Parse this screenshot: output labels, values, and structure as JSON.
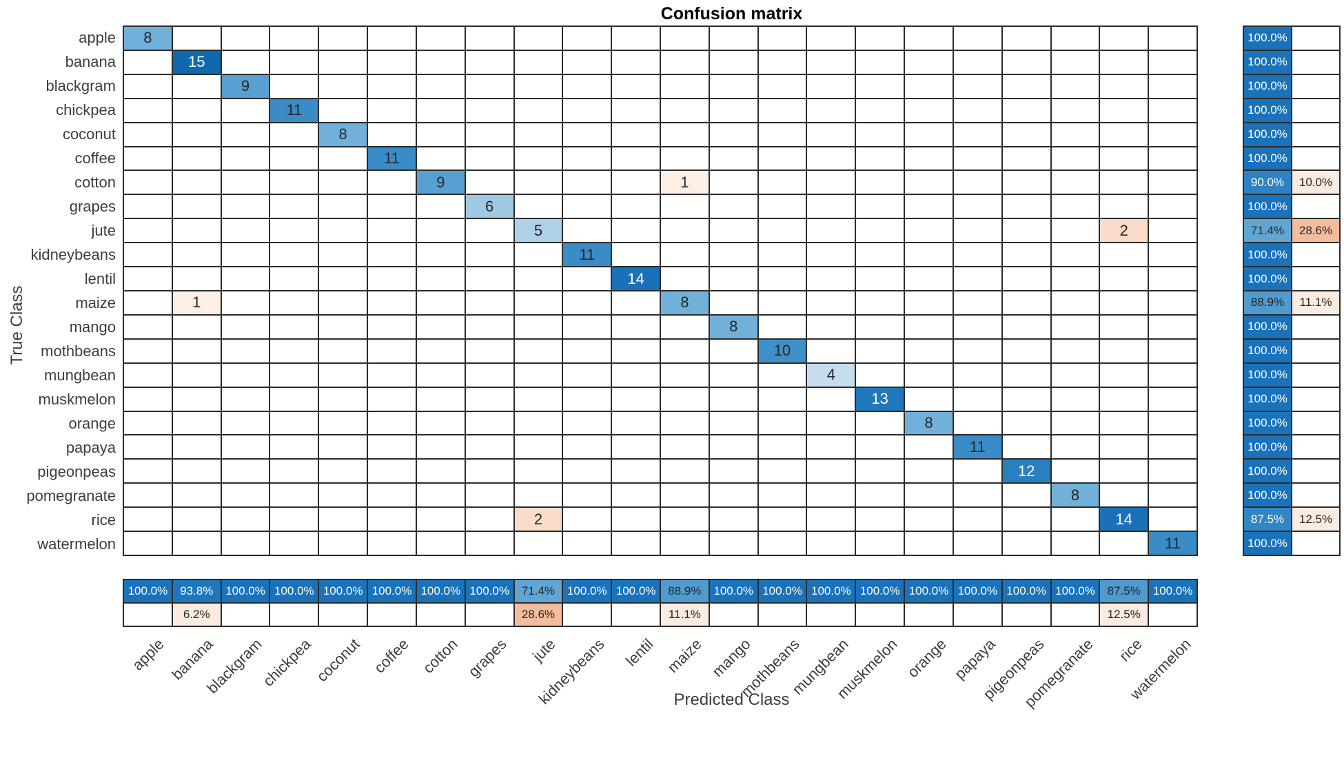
{
  "title": "Confusion matrix",
  "x_axis_label": "Predicted Class",
  "y_axis_label": "True Class",
  "chart_data": {
    "type": "heatmap",
    "title": "Confusion matrix",
    "xlabel": "Predicted Class",
    "ylabel": "True Class",
    "legend_position": "none",
    "grid": true,
    "classes": [
      "apple",
      "banana",
      "blackgram",
      "chickpea",
      "coconut",
      "coffee",
      "cotton",
      "grapes",
      "jute",
      "kidneybeans",
      "lentil",
      "maize",
      "mango",
      "mothbeans",
      "mungbean",
      "muskmelon",
      "orange",
      "papaya",
      "pigeonpeas",
      "pomegranate",
      "rice",
      "watermelon"
    ],
    "diagonal": [
      8,
      15,
      9,
      11,
      8,
      11,
      9,
      6,
      5,
      11,
      14,
      8,
      8,
      10,
      4,
      13,
      8,
      11,
      12,
      8,
      14,
      11
    ],
    "off_diagonal": [
      {
        "true_class": "cotton",
        "predicted_class": "maize",
        "value": 1
      },
      {
        "true_class": "jute",
        "predicted_class": "rice",
        "value": 2
      },
      {
        "true_class": "maize",
        "predicted_class": "banana",
        "value": 1
      },
      {
        "true_class": "rice",
        "predicted_class": "jute",
        "value": 2
      }
    ],
    "row_summary": [
      {
        "pct": "100.0%",
        "style": "blue100",
        "err": "",
        "err_style": ""
      },
      {
        "pct": "100.0%",
        "style": "blue100",
        "err": "",
        "err_style": ""
      },
      {
        "pct": "100.0%",
        "style": "blue100",
        "err": "",
        "err_style": ""
      },
      {
        "pct": "100.0%",
        "style": "blue100",
        "err": "",
        "err_style": ""
      },
      {
        "pct": "100.0%",
        "style": "blue100",
        "err": "",
        "err_style": ""
      },
      {
        "pct": "100.0%",
        "style": "blue100",
        "err": "",
        "err_style": ""
      },
      {
        "pct": "90.0%",
        "style": "blue90",
        "err": "10.0%",
        "err_style": "pinkLight"
      },
      {
        "pct": "100.0%",
        "style": "blue100",
        "err": "",
        "err_style": ""
      },
      {
        "pct": "71.4%",
        "style": "blue71",
        "err": "28.6%",
        "err_style": "pinkStrong"
      },
      {
        "pct": "100.0%",
        "style": "blue100",
        "err": "",
        "err_style": ""
      },
      {
        "pct": "100.0%",
        "style": "blue100",
        "err": "",
        "err_style": ""
      },
      {
        "pct": "88.9%",
        "style": "blue88",
        "err": "11.1%",
        "err_style": "pinkLight"
      },
      {
        "pct": "100.0%",
        "style": "blue100",
        "err": "",
        "err_style": ""
      },
      {
        "pct": "100.0%",
        "style": "blue100",
        "err": "",
        "err_style": ""
      },
      {
        "pct": "100.0%",
        "style": "blue100",
        "err": "",
        "err_style": ""
      },
      {
        "pct": "100.0%",
        "style": "blue100",
        "err": "",
        "err_style": ""
      },
      {
        "pct": "100.0%",
        "style": "blue100",
        "err": "",
        "err_style": ""
      },
      {
        "pct": "100.0%",
        "style": "blue100",
        "err": "",
        "err_style": ""
      },
      {
        "pct": "100.0%",
        "style": "blue100",
        "err": "",
        "err_style": ""
      },
      {
        "pct": "100.0%",
        "style": "blue100",
        "err": "",
        "err_style": ""
      },
      {
        "pct": "87.5%",
        "style": "blue87w",
        "err": "12.5%",
        "err_style": "pinkLight"
      },
      {
        "pct": "100.0%",
        "style": "blue100",
        "err": "",
        "err_style": ""
      }
    ],
    "col_summary": [
      {
        "pct": "100.0%",
        "style": "blue100",
        "err": "",
        "err_style": ""
      },
      {
        "pct": "93.8%",
        "style": "blue93",
        "err": "6.2%",
        "err_style": "pinkLight"
      },
      {
        "pct": "100.0%",
        "style": "blue100",
        "err": "",
        "err_style": ""
      },
      {
        "pct": "100.0%",
        "style": "blue100",
        "err": "",
        "err_style": ""
      },
      {
        "pct": "100.0%",
        "style": "blue100",
        "err": "",
        "err_style": ""
      },
      {
        "pct": "100.0%",
        "style": "blue100",
        "err": "",
        "err_style": ""
      },
      {
        "pct": "100.0%",
        "style": "blue100",
        "err": "",
        "err_style": ""
      },
      {
        "pct": "100.0%",
        "style": "blue100",
        "err": "",
        "err_style": ""
      },
      {
        "pct": "71.4%",
        "style": "blue71",
        "err": "28.6%",
        "err_style": "pinkStrong"
      },
      {
        "pct": "100.0%",
        "style": "blue100",
        "err": "",
        "err_style": ""
      },
      {
        "pct": "100.0%",
        "style": "blue100",
        "err": "",
        "err_style": ""
      },
      {
        "pct": "88.9%",
        "style": "blue88",
        "err": "11.1%",
        "err_style": "pinkLight"
      },
      {
        "pct": "100.0%",
        "style": "blue100",
        "err": "",
        "err_style": ""
      },
      {
        "pct": "100.0%",
        "style": "blue100",
        "err": "",
        "err_style": ""
      },
      {
        "pct": "100.0%",
        "style": "blue100",
        "err": "",
        "err_style": ""
      },
      {
        "pct": "100.0%",
        "style": "blue100",
        "err": "",
        "err_style": ""
      },
      {
        "pct": "100.0%",
        "style": "blue100",
        "err": "",
        "err_style": ""
      },
      {
        "pct": "100.0%",
        "style": "blue100",
        "err": "",
        "err_style": ""
      },
      {
        "pct": "100.0%",
        "style": "blue100",
        "err": "",
        "err_style": ""
      },
      {
        "pct": "100.0%",
        "style": "blue100",
        "err": "",
        "err_style": ""
      },
      {
        "pct": "87.5%",
        "style": "blue87d",
        "err": "12.5%",
        "err_style": "pinkLight"
      },
      {
        "pct": "100.0%",
        "style": "blue100",
        "err": "",
        "err_style": ""
      }
    ]
  },
  "colors": {
    "grid_line": "#2b2b2b",
    "axis_text": "#3d3d3d",
    "diag": {
      "4": {
        "bg": "#c7ddef",
        "fg": "#262626"
      },
      "5": {
        "bg": "#aed1e7",
        "fg": "#262626"
      },
      "6": {
        "bg": "#9fc9e3",
        "fg": "#262626"
      },
      "8": {
        "bg": "#71b0d9",
        "fg": "#262626"
      },
      "9": {
        "bg": "#57a0d1",
        "fg": "#262626"
      },
      "10": {
        "bg": "#3f90c9",
        "fg": "#262626"
      },
      "11": {
        "bg": "#3a8cc7",
        "fg": "#262626"
      },
      "12": {
        "bg": "#2a7fc0",
        "fg": "#ffffff"
      },
      "13": {
        "bg": "#2078bc",
        "fg": "#ffffff"
      },
      "14": {
        "bg": "#1a71b8",
        "fg": "#ffffff"
      },
      "15": {
        "bg": "#0f67b0",
        "fg": "#ffffff"
      }
    },
    "error": {
      "1": {
        "bg": "#fdefe6",
        "fg": "#262626"
      },
      "2": {
        "bg": "#f9dcc8",
        "fg": "#262626"
      }
    },
    "summary_styles": {
      "blue100": {
        "bg": "#1a72bb",
        "fg": "#ffffff"
      },
      "blue93": {
        "bg": "#1e76bd",
        "fg": "#ffffff"
      },
      "blue90": {
        "bg": "#2e82c3",
        "fg": "#ffffff"
      },
      "blue88": {
        "bg": "#4f9bcf",
        "fg": "#262626"
      },
      "blue87w": {
        "bg": "#3185c4",
        "fg": "#ffffff"
      },
      "blue87d": {
        "bg": "#4f9bcf",
        "fg": "#262626"
      },
      "blue71": {
        "bg": "#60a5d4",
        "fg": "#262626"
      },
      "pinkStrong": {
        "bg": "#f3bc9d",
        "fg": "#262626"
      },
      "pinkLight": {
        "bg": "#fcebe0",
        "fg": "#262626"
      }
    }
  }
}
